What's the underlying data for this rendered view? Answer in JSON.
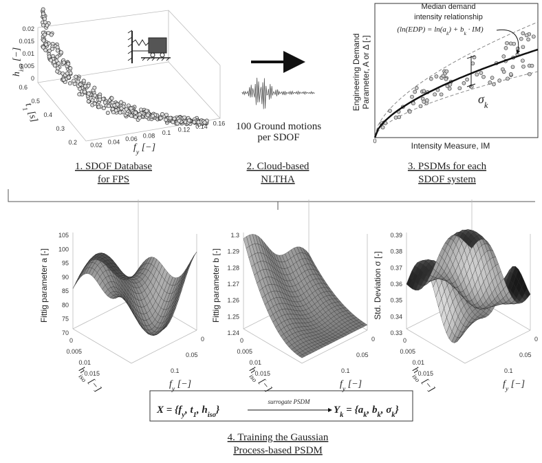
{
  "panel1": {
    "z_label": [
      {
        "text": "h",
        "sub": "iso"
      },
      {
        "text": " [−]"
      }
    ],
    "z_ticks": [
      "0.02",
      "0.015",
      "0.01",
      "0.005",
      "0"
    ],
    "t_label": [
      {
        "text": "t",
        "sub": "1"
      },
      {
        "text": " [s]"
      }
    ],
    "t_ticks": [
      "0.6",
      "0.5",
      "0.4",
      "0.3",
      "0.2"
    ],
    "f_label": [
      {
        "text": "f",
        "sub": "y"
      },
      {
        "text": " [−]"
      }
    ],
    "f_ticks": [
      "0.02",
      "0.04",
      "0.06",
      "0.08",
      "0.1",
      "0.12",
      "0.14",
      "0.16"
    ]
  },
  "ground_motion_text": [
    "100 Ground motions",
    "per SDOF"
  ],
  "panel3": {
    "annotation": [
      "Median demand",
      "intensity relationship"
    ],
    "equation": [
      {
        "text": "(ln(EDP) = ln(a",
        "sub": "k"
      },
      {
        "text": ") + b",
        "sub": "k"
      },
      {
        "text": " · IM)"
      }
    ],
    "sigma": [
      {
        "text": "σ",
        "sub": "k"
      }
    ],
    "y_label": [
      "Engineering Demand",
      "Parameter, A or Δ [-]"
    ],
    "x_label": "Intensity Measure, IM",
    "origin": "0"
  },
  "captions": [
    [
      "1. SDOF Database",
      "for FPS"
    ],
    [
      "2. Cloud-based",
      "NLTHA"
    ],
    [
      "3. PSDMs for each",
      "SDOF system"
    ]
  ],
  "surfaces": [
    {
      "z_label": "Fittig parameter a [-]",
      "z_ticks": [
        "105",
        "100",
        "95",
        "90",
        "85",
        "80",
        "75",
        "70"
      ],
      "h_label": [
        {
          "text": "h",
          "sub": "iso"
        },
        {
          "text": " [−]"
        }
      ],
      "h_ticks": [
        "0",
        "0.005",
        "0.01",
        "0.015"
      ],
      "f_label": [
        {
          "text": "f",
          "sub": "y"
        },
        {
          "text": " [−]"
        }
      ],
      "f_ticks": [
        "0",
        "0.05",
        "0.1"
      ]
    },
    {
      "z_label": "Fittig parameter b [-]",
      "z_ticks": [
        "1.3",
        "1.29",
        "1.28",
        "1.27",
        "1.26",
        "1.25",
        "1.24"
      ],
      "h_label": [
        {
          "text": "h",
          "sub": "iso"
        },
        {
          "text": " [−]"
        }
      ],
      "h_ticks": [
        "0",
        "0.005",
        "0.01",
        "0.015"
      ],
      "f_label": [
        {
          "text": "f",
          "sub": "y"
        },
        {
          "text": " [−]"
        }
      ],
      "f_ticks": [
        "0",
        "0.05",
        "0.1"
      ]
    },
    {
      "z_label": "Std. Deviation σ [-]",
      "z_ticks": [
        "0.39",
        "0.38",
        "0.37",
        "0.36",
        "0.35",
        "0.34",
        "0.33"
      ],
      "h_label": [
        {
          "text": "h",
          "sub": "iso"
        },
        {
          "text": " [−]"
        }
      ],
      "h_ticks": [
        "0",
        "0.005",
        "0.01",
        "0.015"
      ],
      "f_label": [
        {
          "text": "f",
          "sub": "y"
        },
        {
          "text": " [−]"
        }
      ],
      "f_ticks": [
        "0",
        "0.05",
        "0.1"
      ]
    }
  ],
  "formula": {
    "x": [
      {
        "text": "X = {f",
        "sub": "y"
      },
      {
        "text": ", t",
        "sub": "1"
      },
      {
        "text": ", h",
        "sub": "iso"
      },
      {
        "text": "}"
      }
    ],
    "arrow_label": "surrogate PSDM",
    "y": [
      {
        "text": "Y",
        "sub": "k"
      },
      {
        "text": " = {a",
        "sub": "k"
      },
      {
        "text": ", b",
        "sub": "k"
      },
      {
        "text": ", σ",
        "sub": "k"
      },
      {
        "text": "}"
      }
    ]
  },
  "caption4": [
    "4. Training the Gaussian",
    "Process-based PSDM"
  ]
}
